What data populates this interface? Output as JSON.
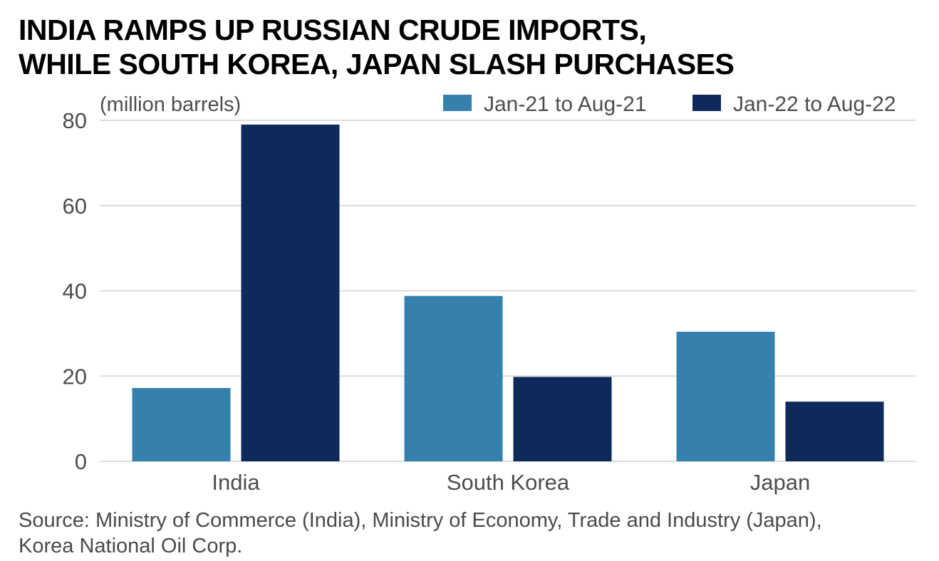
{
  "title": {
    "line1": "INDIA RAMPS UP RUSSIAN CRUDE IMPORTS,",
    "line2": "WHILE SOUTH KOREA, JAPAN SLASH PURCHASES"
  },
  "source": {
    "line1": "Source: Ministry of Commerce (India), Ministry of Economy, Trade and Industry (Japan),",
    "line2": "Korea National Oil Corp."
  },
  "colors": {
    "series1": "#3580ad",
    "series2": "#0e2a5a",
    "grid": "#dcdcdc",
    "axis_text": "#4d4d4d"
  },
  "chart_data": {
    "type": "bar",
    "title": "INDIA RAMPS UP RUSSIAN CRUDE IMPORTS, WHILE SOUTH KOREA, JAPAN SLASH PURCHASES",
    "ylabel": "(million barrels)",
    "xlabel": "",
    "categories": [
      "India",
      "South Korea",
      "Japan"
    ],
    "series": [
      {
        "name": "Jan-21 to Aug-21",
        "values": [
          17.2,
          38.8,
          30.4
        ]
      },
      {
        "name": "Jan-22 to Aug-22",
        "values": [
          79.0,
          19.8,
          14.0
        ]
      }
    ],
    "ylim": [
      0,
      80
    ],
    "yticks": [
      0,
      20,
      40,
      60,
      80
    ],
    "grid": true,
    "legend": "top-right"
  }
}
